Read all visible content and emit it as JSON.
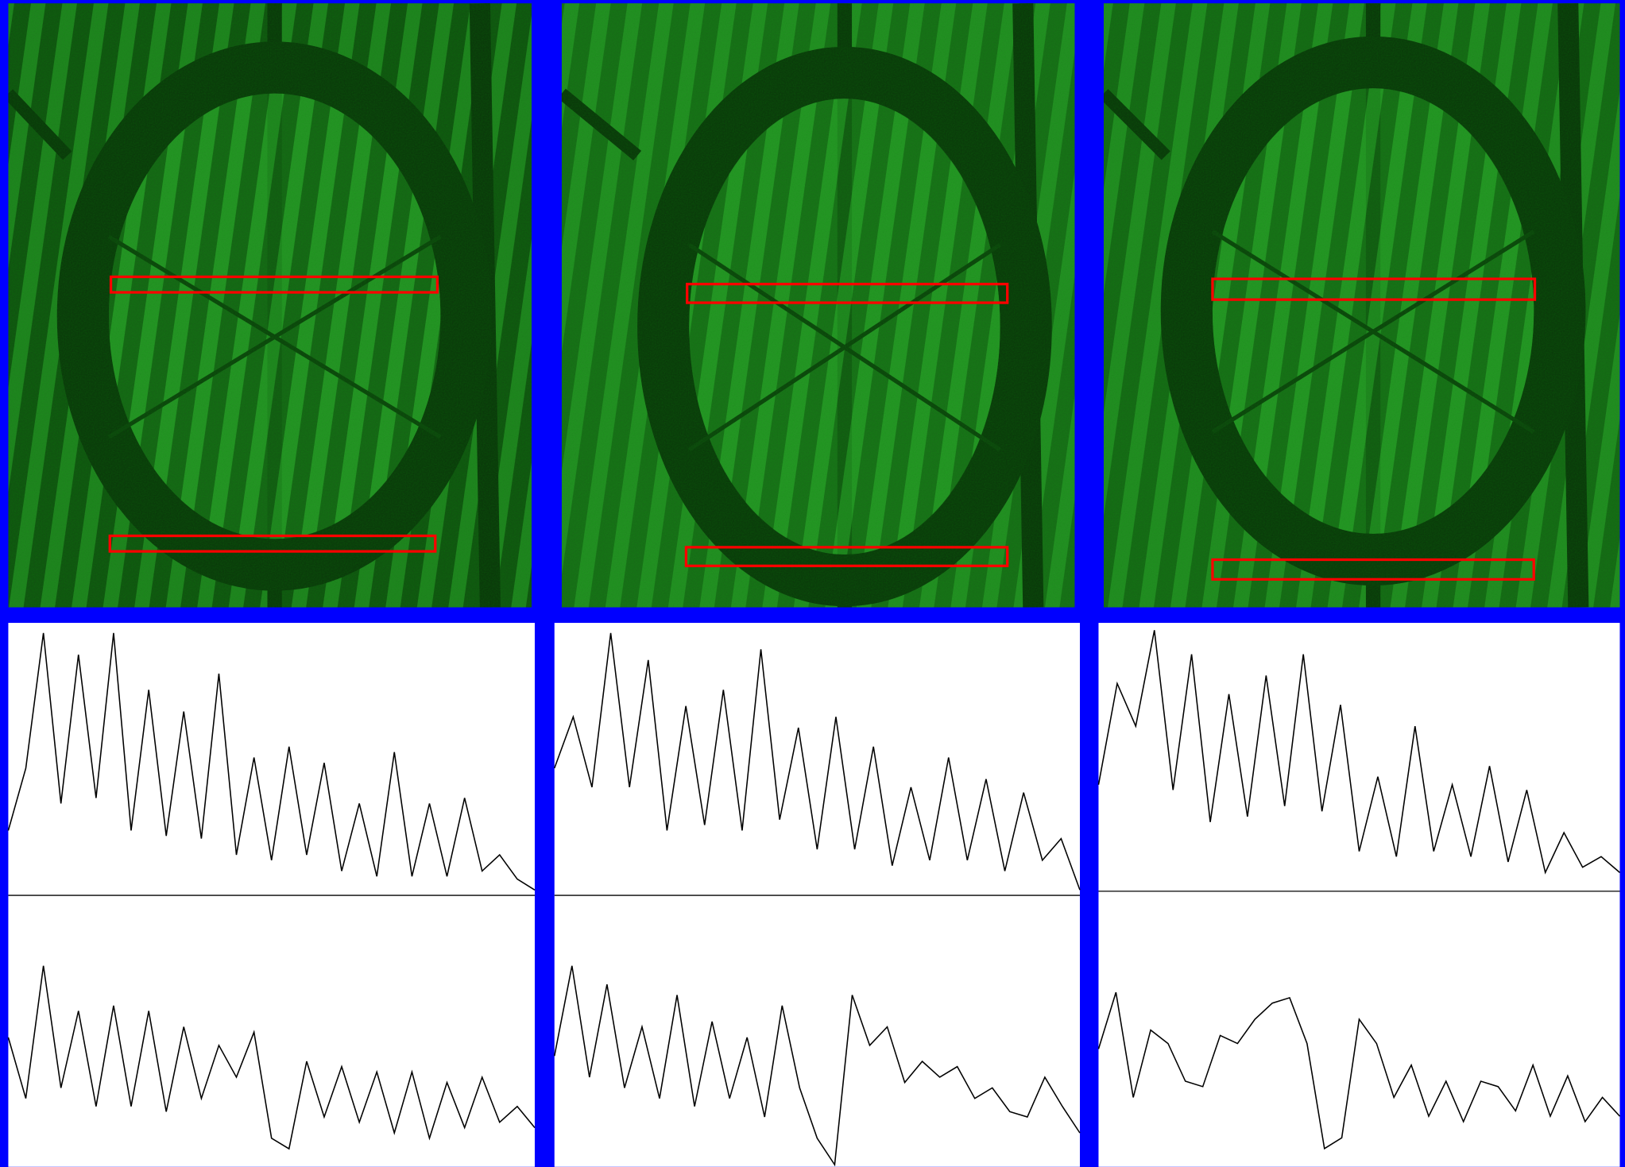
{
  "chart_data": [
    {
      "type": "line",
      "color": "#000000",
      "ylim": [
        0,
        100
      ],
      "values": [
        24,
        47,
        97,
        34,
        89,
        36,
        97,
        24,
        76,
        22,
        68,
        21,
        82,
        15,
        51,
        13,
        55,
        15,
        49,
        9,
        34,
        7,
        53,
        7,
        34,
        7,
        36,
        9,
        15,
        6,
        2
      ]
    },
    {
      "type": "line",
      "color": "#000000",
      "ylim": [
        0,
        100
      ],
      "values": [
        47,
        66,
        40,
        97,
        40,
        87,
        24,
        70,
        26,
        76,
        24,
        91,
        28,
        62,
        17,
        66,
        17,
        55,
        11,
        40,
        13,
        51,
        13,
        43,
        9,
        38,
        13,
        21,
        2
      ]
    },
    {
      "type": "line",
      "color": "#000000",
      "ylim": [
        0,
        100
      ],
      "values": [
        40,
        78,
        62,
        98,
        38,
        89,
        26,
        74,
        28,
        81,
        32,
        89,
        30,
        70,
        15,
        43,
        13,
        62,
        15,
        40,
        13,
        47,
        11,
        38,
        7,
        22,
        9,
        13,
        7
      ]
    },
    {
      "type": "line",
      "color": "#000000",
      "ylim": [
        0,
        100
      ],
      "values": [
        48,
        25,
        75,
        29,
        58,
        22,
        60,
        22,
        58,
        20,
        52,
        25,
        45,
        33,
        50,
        10,
        6,
        39,
        18,
        37,
        16,
        35,
        12,
        35,
        10,
        31,
        14,
        33,
        16,
        22,
        14
      ]
    },
    {
      "type": "line",
      "color": "#000000",
      "ylim": [
        0,
        100
      ],
      "values": [
        41,
        75,
        33,
        68,
        29,
        52,
        25,
        64,
        22,
        54,
        25,
        48,
        18,
        60,
        29,
        10,
        0,
        64,
        45,
        52,
        31,
        39,
        33,
        37,
        25,
        29,
        20,
        18,
        33,
        22,
        12
      ]
    },
    {
      "type": "line",
      "color": "#000000",
      "ylim": [
        0,
        100
      ],
      "values": [
        43,
        64,
        25,
        50,
        45,
        31,
        29,
        48,
        45,
        54,
        60,
        62,
        45,
        6,
        10,
        54,
        45,
        25,
        37,
        18,
        31,
        16,
        31,
        29,
        20,
        37,
        18,
        33,
        16,
        25,
        18
      ]
    }
  ]
}
